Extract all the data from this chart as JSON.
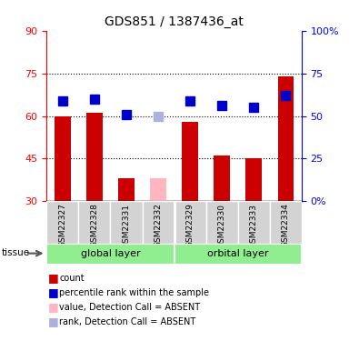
{
  "title": "GDS851 / 1387436_at",
  "samples": [
    "GSM22327",
    "GSM22328",
    "GSM22331",
    "GSM22332",
    "GSM22329",
    "GSM22330",
    "GSM22333",
    "GSM22334"
  ],
  "bar_values": [
    60,
    61,
    38,
    null,
    58,
    46,
    45,
    74
  ],
  "absent_bar_value": 38,
  "absent_bar_index": 3,
  "rank_values": [
    59,
    60,
    51,
    null,
    59,
    56,
    55,
    62
  ],
  "rank_absent_value": 50,
  "rank_absent_index": 3,
  "ylim_left": [
    30,
    90
  ],
  "ylim_right": [
    0,
    100
  ],
  "yticks_left": [
    30,
    45,
    60,
    75,
    90
  ],
  "yticks_right": [
    0,
    25,
    50,
    75,
    100
  ],
  "ytick_labels_right": [
    "0%",
    "25",
    "50",
    "75",
    "100%"
  ],
  "hlines": [
    45,
    60,
    75
  ],
  "bar_color": "#cc0000",
  "rank_color": "#0000cc",
  "absent_bar_color": "#ffb6c1",
  "absent_rank_color": "#b0b0e0",
  "legend_items": [
    {
      "color": "#cc0000",
      "label": "count"
    },
    {
      "color": "#0000cc",
      "label": "percentile rank within the sample"
    },
    {
      "color": "#ffb6c1",
      "label": "value, Detection Call = ABSENT"
    },
    {
      "color": "#b0b0e0",
      "label": "rank, Detection Call = ABSENT"
    }
  ],
  "group_labels": [
    "global layer",
    "orbital layer"
  ],
  "group_ranges": [
    [
      0,
      3
    ],
    [
      4,
      7
    ]
  ],
  "group_color": "#90ee90",
  "tissue_label": "tissue"
}
